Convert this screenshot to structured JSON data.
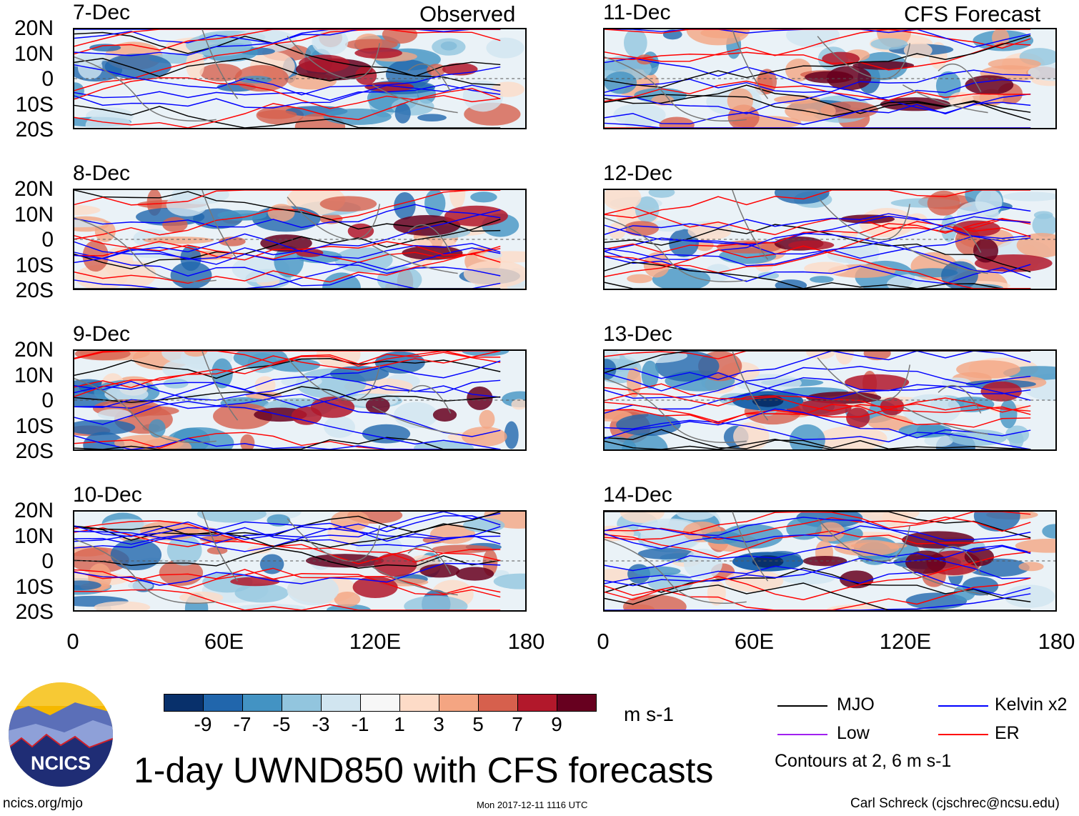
{
  "column_titles": {
    "left": "Observed",
    "right": "CFS Forecast"
  },
  "panels": [
    {
      "date": "7-Dec",
      "column": "left",
      "row": 0
    },
    {
      "date": "8-Dec",
      "column": "left",
      "row": 1
    },
    {
      "date": "9-Dec",
      "column": "left",
      "row": 2
    },
    {
      "date": "10-Dec",
      "column": "left",
      "row": 3
    },
    {
      "date": "11-Dec",
      "column": "right",
      "row": 0
    },
    {
      "date": "12-Dec",
      "column": "right",
      "row": 1
    },
    {
      "date": "13-Dec",
      "column": "right",
      "row": 2
    },
    {
      "date": "14-Dec",
      "column": "right",
      "row": 3
    }
  ],
  "lat_ticks": [
    "20N",
    "10N",
    "0",
    "10S",
    "20S"
  ],
  "lon_ticks": [
    "0",
    "60E",
    "120E",
    "180"
  ],
  "colorbar": {
    "labels": [
      "-9",
      "-7",
      "-5",
      "-3",
      "-1",
      "1",
      "3",
      "5",
      "7",
      "9"
    ],
    "colors": [
      "#08306b",
      "#2166ac",
      "#4393c3",
      "#92c5de",
      "#d1e5f0",
      "#f7f7f7",
      "#fddbc7",
      "#f4a582",
      "#d6604d",
      "#b2182b",
      "#67001f"
    ],
    "units": "m s-1"
  },
  "legend": [
    {
      "label": "MJO",
      "color": "#000000"
    },
    {
      "label": "Kelvin x2",
      "color": "#0000ff"
    },
    {
      "label": "Low",
      "color": "#a020f0"
    },
    {
      "label": "ER",
      "color": "#ff0000"
    }
  ],
  "contour_note": "Contours at 2, 6 m s-1",
  "logo_text": "NCICS",
  "title": "1-day UWND850 with CFS forecasts",
  "footer": {
    "left": "ncics.org/mjo",
    "center": "Mon 2017-12-11 1116 UTC",
    "right": "Carl Schreck (cjschrec@ncsu.edu)"
  }
}
